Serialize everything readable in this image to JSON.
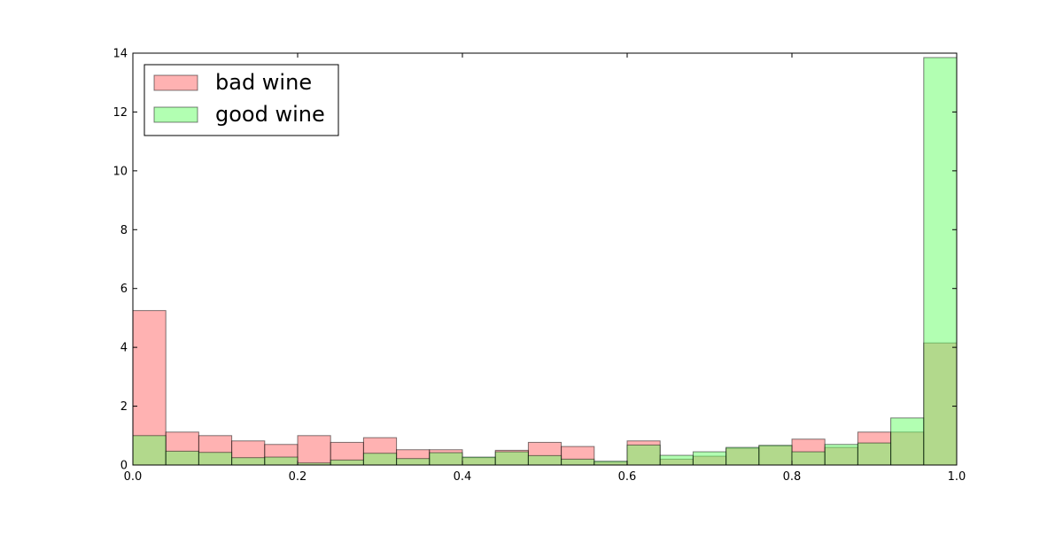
{
  "chart_data": {
    "type": "bar",
    "bins": 25,
    "xlim": [
      0.0,
      1.0
    ],
    "ylim": [
      0,
      14
    ],
    "xticks": [
      "0.0",
      "0.2",
      "0.4",
      "0.6",
      "0.8",
      "1.0"
    ],
    "yticks": [
      "0",
      "2",
      "4",
      "6",
      "8",
      "10",
      "12",
      "14"
    ],
    "grid": false,
    "legend": "top-left",
    "series": [
      {
        "name": "bad wine",
        "color": "#ff6666",
        "alpha": 0.5,
        "values": [
          5.25,
          1.12,
          1.0,
          0.82,
          0.7,
          1.0,
          0.77,
          0.93,
          0.52,
          0.52,
          0.25,
          0.5,
          0.77,
          0.63,
          0.1,
          0.82,
          0.2,
          0.3,
          0.57,
          0.65,
          0.88,
          0.6,
          1.12,
          1.12,
          4.15
        ]
      },
      {
        "name": "good wine",
        "color": "#66ff66",
        "alpha": 0.5,
        "values": [
          1.0,
          0.47,
          0.43,
          0.25,
          0.27,
          0.07,
          0.17,
          0.4,
          0.22,
          0.42,
          0.27,
          0.45,
          0.32,
          0.2,
          0.13,
          0.68,
          0.33,
          0.45,
          0.6,
          0.67,
          0.45,
          0.7,
          0.75,
          1.6,
          13.85
        ]
      }
    ]
  }
}
